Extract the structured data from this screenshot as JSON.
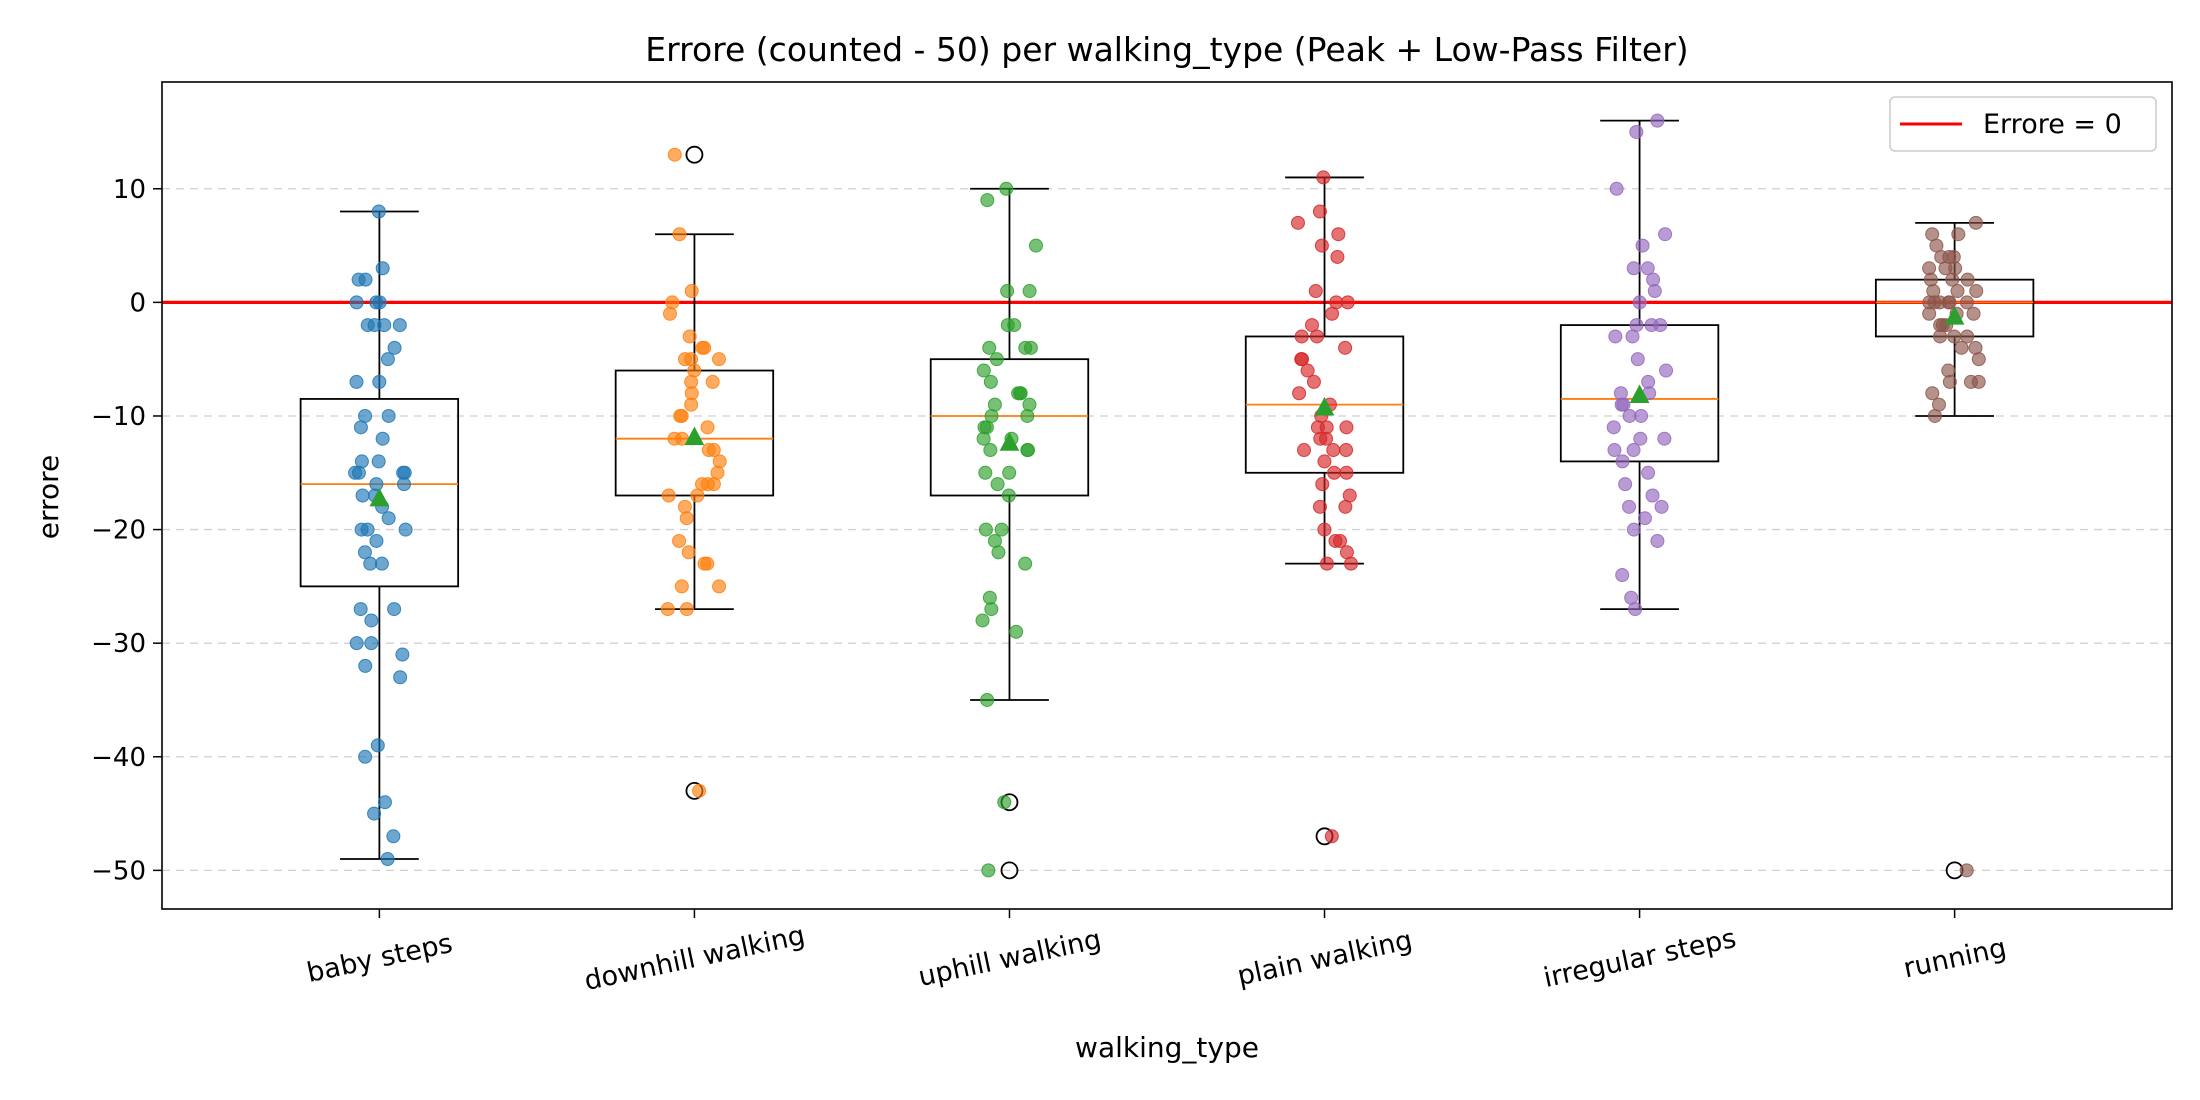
{
  "chart_data": {
    "type": "box",
    "title": "Errore (counted - 50) per walking_type (Peak + Low-Pass Filter)",
    "xlabel": "walking_type",
    "ylabel": "errore",
    "ylim": [
      -53.4,
      19.4
    ],
    "yticks": [
      -50,
      -40,
      -30,
      -20,
      -10,
      0,
      10
    ],
    "ytick_labels": [
      "−50",
      "−40",
      "−30",
      "−20",
      "−10",
      "0",
      "10"
    ],
    "grid": "horizontal dashed",
    "legend": {
      "placement": "top-right",
      "entries": [
        "Errore = 0"
      ]
    },
    "reference_line": {
      "y": 0,
      "color": "#ff0000",
      "label": "Errore = 0"
    },
    "categories": [
      "baby steps",
      "downhill walking",
      "uphill walking",
      "plain walking",
      "irregular steps",
      "running"
    ],
    "colors": [
      "#1f77b4",
      "#ff7f0e",
      "#2ca02c",
      "#d62728",
      "#9467bd",
      "#8c564b"
    ],
    "median_color": "#ff7f0e",
    "mean_marker_color": "#2ca02c",
    "boxes": [
      {
        "whislo": -49,
        "q1": -25,
        "med": -16,
        "q3": -8.5,
        "whishi": 8,
        "mean": -17.3,
        "fliers": []
      },
      {
        "whislo": -27,
        "q1": -17,
        "med": -12,
        "q3": -6,
        "whishi": 6,
        "mean": -11.9,
        "fliers": [
          13,
          -43
        ]
      },
      {
        "whislo": -35,
        "q1": -17,
        "med": -10,
        "q3": -5,
        "whishi": 10,
        "mean": -12.4,
        "fliers": [
          -44,
          -50
        ]
      },
      {
        "whislo": -23,
        "q1": -15,
        "med": -9,
        "q3": -3,
        "whishi": 11,
        "mean": -9.3,
        "fliers": [
          -47
        ]
      },
      {
        "whislo": -27,
        "q1": -14,
        "med": -8.5,
        "q3": -2,
        "whishi": 16,
        "mean": -8.2,
        "fliers": []
      },
      {
        "whislo": -10,
        "q1": -3,
        "med": 0,
        "q3": 2,
        "whishi": 7,
        "mean": -1.3,
        "fliers": [
          -50
        ]
      }
    ],
    "points": [
      [
        8,
        3,
        2,
        2,
        0,
        0,
        0,
        -2,
        -2,
        -2,
        -2,
        -4,
        -5,
        -7,
        -7,
        -10,
        -10,
        -11,
        -12,
        -14,
        -14,
        -15,
        -15,
        -15,
        -15,
        -16,
        -16,
        -17,
        -17,
        -18,
        -19,
        -20,
        -20,
        -20,
        -21,
        -22,
        -23,
        -23,
        -27,
        -27,
        -28,
        -30,
        -30,
        -31,
        -32,
        -33,
        -39,
        -40,
        -44,
        -45,
        -47,
        -49
      ],
      [
        13,
        6,
        1,
        0,
        -1,
        -3,
        -4,
        -4,
        -5,
        -5,
        -5,
        -6,
        -7,
        -7,
        -8,
        -9,
        -10,
        -10,
        -11,
        -12,
        -12,
        -13,
        -13,
        -14,
        -15,
        -16,
        -16,
        -16,
        -17,
        -17,
        -18,
        -19,
        -21,
        -22,
        -23,
        -23,
        -25,
        -25,
        -27,
        -27,
        -43
      ],
      [
        10,
        9,
        5,
        1,
        1,
        -2,
        -2,
        -4,
        -4,
        -4,
        -5,
        -6,
        -7,
        -8,
        -8,
        -8,
        -9,
        -9,
        -10,
        -10,
        -11,
        -11,
        -12,
        -12,
        -13,
        -13,
        -13,
        -15,
        -15,
        -16,
        -17,
        -20,
        -20,
        -21,
        -22,
        -23,
        -26,
        -27,
        -28,
        -29,
        -35,
        -44,
        -50
      ],
      [
        11,
        8,
        7,
        6,
        5,
        4,
        1,
        0,
        0,
        -1,
        -2,
        -3,
        -3,
        -4,
        -5,
        -5,
        -6,
        -7,
        -8,
        -9,
        -10,
        -11,
        -11,
        -11,
        -12,
        -12,
        -13,
        -13,
        -13,
        -14,
        -15,
        -15,
        -16,
        -17,
        -18,
        -18,
        -20,
        -21,
        -21,
        -22,
        -23,
        -23,
        -47
      ],
      [
        16,
        15,
        10,
        6,
        5,
        3,
        3,
        2,
        1,
        0,
        -2,
        -2,
        -2,
        -3,
        -3,
        -5,
        -6,
        -7,
        -8,
        -8,
        -9,
        -9,
        -10,
        -10,
        -11,
        -12,
        -12,
        -13,
        -13,
        -14,
        -15,
        -16,
        -17,
        -18,
        -18,
        -19,
        -20,
        -21,
        -24,
        -26,
        -27
      ],
      [
        7,
        6,
        6,
        5,
        4,
        4,
        4,
        3,
        3,
        3,
        2,
        2,
        2,
        1,
        1,
        1,
        0,
        0,
        0,
        0,
        0,
        0,
        -1,
        -1,
        -1,
        -2,
        -2,
        -2,
        -3,
        -3,
        -3,
        -4,
        -4,
        -5,
        -6,
        -7,
        -7,
        -7,
        -8,
        -9,
        -10,
        -50
      ]
    ]
  }
}
